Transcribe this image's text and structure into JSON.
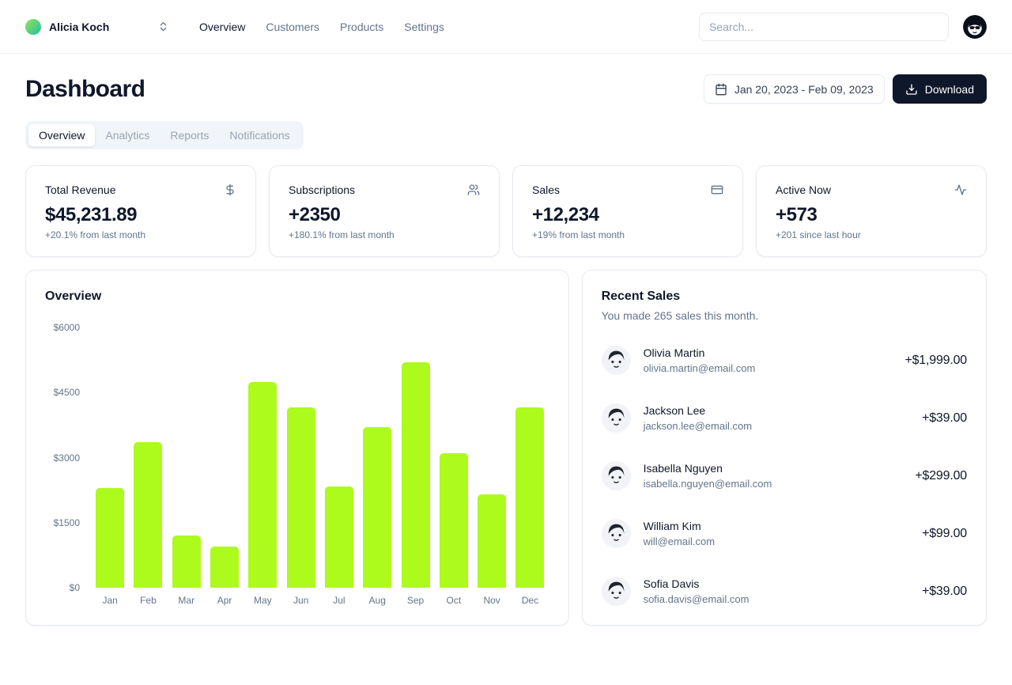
{
  "header": {
    "team": {
      "name": "Alicia Koch"
    },
    "nav": [
      {
        "label": "Overview",
        "active": true
      },
      {
        "label": "Customers"
      },
      {
        "label": "Products"
      },
      {
        "label": "Settings"
      }
    ],
    "search": {
      "placeholder": "Search..."
    }
  },
  "page": {
    "title": "Dashboard",
    "date_range": "Jan 20, 2023 - Feb 09, 2023",
    "download_label": "Download"
  },
  "tabs": [
    {
      "label": "Overview",
      "active": true
    },
    {
      "label": "Analytics"
    },
    {
      "label": "Reports"
    },
    {
      "label": "Notifications"
    }
  ],
  "stats": [
    {
      "title": "Total Revenue",
      "icon": "dollar-icon",
      "value": "$45,231.89",
      "change": "+20.1% from last month"
    },
    {
      "title": "Subscriptions",
      "icon": "users-icon",
      "value": "+2350",
      "change": "+180.1% from last month"
    },
    {
      "title": "Sales",
      "icon": "credit-card-icon",
      "value": "+12,234",
      "change": "+19% from last month"
    },
    {
      "title": "Active Now",
      "icon": "activity-icon",
      "value": "+573",
      "change": "+201 since last hour"
    }
  ],
  "chart_data": {
    "type": "bar",
    "title": "Overview",
    "categories": [
      "Jan",
      "Feb",
      "Mar",
      "Apr",
      "May",
      "Jun",
      "Jul",
      "Aug",
      "Sep",
      "Oct",
      "Nov",
      "Dec"
    ],
    "values": [
      2300,
      3350,
      1200,
      950,
      4750,
      4150,
      2330,
      3700,
      5200,
      3100,
      2150,
      4150
    ],
    "y_ticks": [
      "$6000",
      "$4500",
      "$3000",
      "$1500",
      "$0"
    ],
    "xlabel": "",
    "ylabel": "",
    "ylim": [
      0,
      6000
    ],
    "grid": false,
    "legend": false,
    "bar_color": "#adfa1d"
  },
  "recent_sales": {
    "title": "Recent Sales",
    "description": "You made 265 sales this month.",
    "items": [
      {
        "name": "Olivia Martin",
        "email": "olivia.martin@email.com",
        "amount": "+$1,999.00"
      },
      {
        "name": "Jackson Lee",
        "email": "jackson.lee@email.com",
        "amount": "+$39.00"
      },
      {
        "name": "Isabella Nguyen",
        "email": "isabella.nguyen@email.com",
        "amount": "+$299.00"
      },
      {
        "name": "William Kim",
        "email": "will@email.com",
        "amount": "+$99.00"
      },
      {
        "name": "Sofia Davis",
        "email": "sofia.davis@email.com",
        "amount": "+$39.00"
      }
    ]
  },
  "colors": {
    "bar": "#adfa1d",
    "primary_button": "#0f172a",
    "border": "#e6eaf0",
    "muted_text": "#64748b",
    "logo_gradient_start": "#8ae063",
    "logo_gradient_end": "#2fc29b"
  }
}
